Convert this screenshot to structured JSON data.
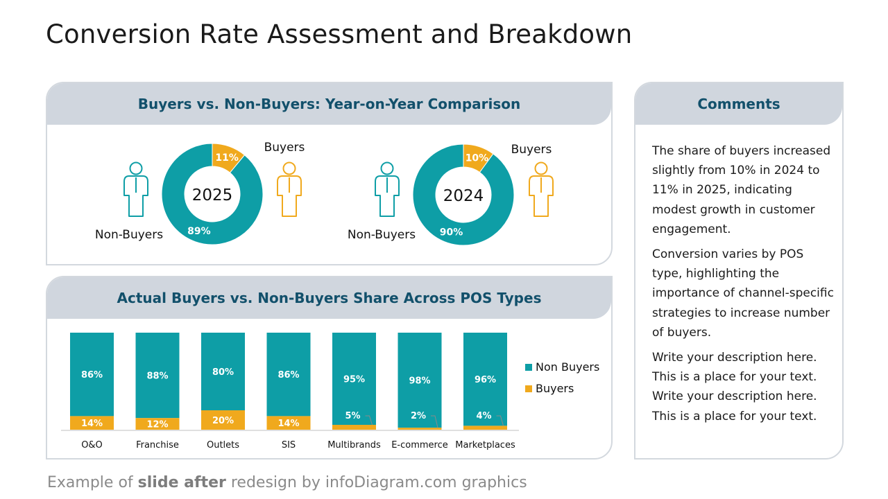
{
  "title": "Conversion Rate Assessment and Breakdown",
  "colors": {
    "teal": "#0e9ea6",
    "orange": "#f0a91d",
    "header_bg": "#d0d6de",
    "header_text": "#12506b"
  },
  "donut_panel": {
    "header": "Buyers vs. Non-Buyers: Year-on-Year Comparison"
  },
  "bar_panel": {
    "header": "Actual Buyers vs. Non-Buyers Share Across POS Types"
  },
  "comments": {
    "header": "Comments",
    "paragraphs": [
      "The share of buyers increased slightly from 10% in 2024 to 11% in 2025, indicating modest growth in customer engagement.",
      "Conversion varies by POS type, highlighting the importance of channel-specific strategies to increase number of buyers.",
      "Write your description here. This is a place for your text. Write your description here. This is a place for your text."
    ]
  },
  "footer": {
    "prefix": "Example of ",
    "bold": "slide after",
    "suffix": " redesign by infoDiagram.com graphics"
  },
  "icons": {
    "non_buyer": "person-outline-icon",
    "buyer": "person-outline-icon"
  },
  "chart_data": [
    {
      "type": "pie",
      "center_label": "2025",
      "series": [
        {
          "name": "Non-Buyers",
          "value": 89,
          "label": "89%"
        },
        {
          "name": "Buyers",
          "value": 11,
          "label": "11%"
        }
      ]
    },
    {
      "type": "pie",
      "center_label": "2024",
      "series": [
        {
          "name": "Non-Buyers",
          "value": 90,
          "label": "90%"
        },
        {
          "name": "Buyers",
          "value": 10,
          "label": "10%"
        }
      ]
    },
    {
      "type": "bar",
      "stacked": true,
      "categories": [
        "O&O",
        "Franchise",
        "Outlets",
        "SIS",
        "Multibrands",
        "E-commerce",
        "Marketplaces"
      ],
      "series": [
        {
          "name": "Non Buyers",
          "values": [
            86,
            88,
            80,
            86,
            95,
            98,
            96
          ],
          "labels": [
            "86%",
            "88%",
            "80%",
            "86%",
            "95%",
            "98%",
            "96%"
          ]
        },
        {
          "name": "Buyers",
          "values": [
            14,
            12,
            20,
            14,
            5,
            2,
            4
          ],
          "labels": [
            "14%",
            "12%",
            "20%",
            "14%",
            "5%",
            "2%",
            "4%"
          ]
        }
      ],
      "ylim": [
        0,
        100
      ],
      "legend": "right"
    }
  ]
}
